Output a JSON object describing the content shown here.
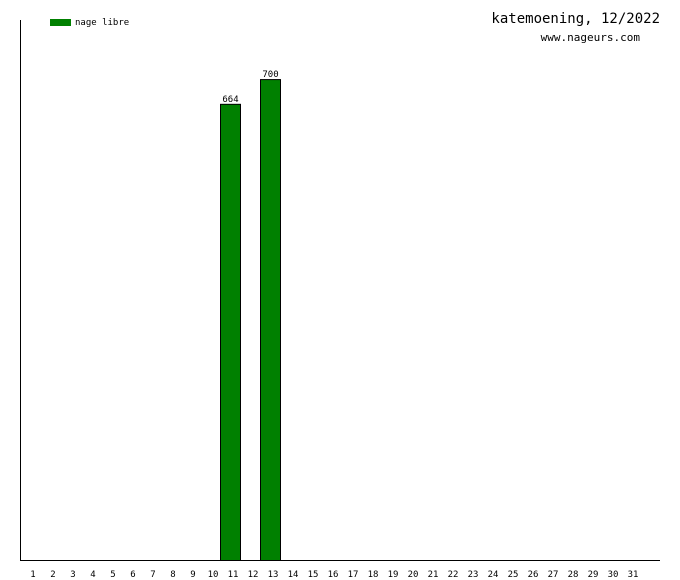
{
  "chart_data": {
    "type": "bar",
    "title": "katemoening, 12/2022",
    "subtitle": "www.nageurs.com",
    "categories": [
      "1",
      "2",
      "3",
      "4",
      "5",
      "6",
      "7",
      "8",
      "9",
      "10",
      "11",
      "12",
      "13",
      "14",
      "15",
      "16",
      "17",
      "18",
      "19",
      "20",
      "21",
      "22",
      "23",
      "24",
      "25",
      "26",
      "27",
      "28",
      "29",
      "30",
      "31"
    ],
    "series": [
      {
        "name": "nage libre",
        "color": "#008000",
        "values": [
          null,
          null,
          null,
          null,
          null,
          null,
          null,
          null,
          null,
          null,
          664,
          null,
          700,
          null,
          null,
          null,
          null,
          null,
          null,
          null,
          null,
          null,
          null,
          null,
          null,
          null,
          null,
          null,
          null,
          null,
          null
        ]
      }
    ],
    "ylim": [
      0,
      786
    ]
  }
}
